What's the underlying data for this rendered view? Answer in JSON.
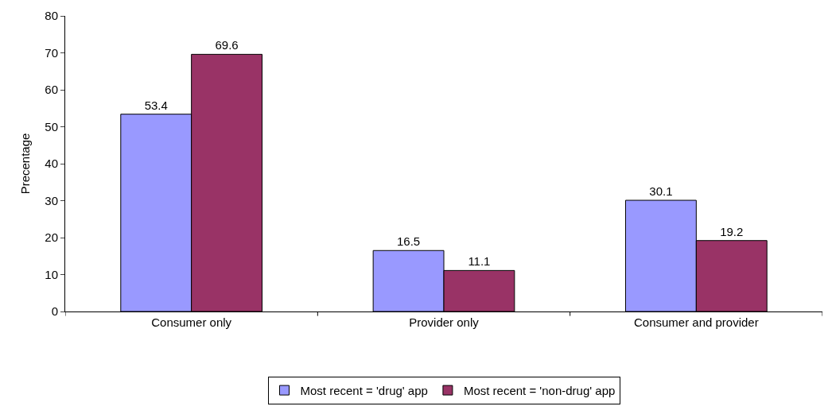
{
  "chart_data": {
    "type": "bar",
    "ylabel": "Precentage",
    "categories": [
      "Consumer only",
      "Provider only",
      "Consumer and provider"
    ],
    "series": [
      {
        "name": "Most recent = 'drug' app",
        "color": "#9999ff",
        "values": [
          53.4,
          16.5,
          30.1
        ]
      },
      {
        "name": "Most recent = 'non-drug' app",
        "color": "#993366",
        "values": [
          69.6,
          11.1,
          19.2
        ]
      }
    ],
    "ylim": [
      0,
      80
    ],
    "yticks": [
      0,
      10,
      20,
      30,
      40,
      50,
      60,
      70,
      80
    ],
    "data_labels": true,
    "grid": false,
    "legend": "bottom"
  }
}
